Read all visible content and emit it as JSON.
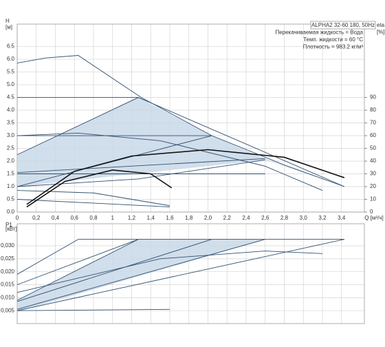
{
  "chart_data": [
    {
      "type": "line",
      "ylabel": "H",
      "yunit": "[м]",
      "xlabel": "Q [м³/ч]",
      "y2label": "eta",
      "y2unit": "[%]",
      "info": [
        "ALPHA2 32-60 180, 50Hz",
        "Перекачиваемая жидкость = Вода",
        "Темп. жидкости = 60 °C",
        "Плотность = 983.2 кг/м³"
      ],
      "xlim": [
        0,
        3.64
      ],
      "ylim": [
        0,
        7.38
      ],
      "y2lim": [
        0,
        147.6
      ],
      "grid": true,
      "xticks": [
        0,
        {
          "value": 0.2,
          "label": "0,2"
        },
        {
          "value": 0.4,
          "label": "0,4"
        },
        {
          "value": 0.6,
          "label": "0,6"
        },
        {
          "value": 0.8,
          "label": "0,8"
        },
        1,
        {
          "value": 1.2,
          "label": "1,2"
        },
        {
          "value": 1.4,
          "label": "1,4"
        },
        {
          "value": 1.6,
          "label": "1,6"
        },
        {
          "value": 1.8,
          "label": "1,8"
        },
        {
          "value": 2,
          "label": "2,0"
        },
        {
          "value": 2.2,
          "label": "2,2"
        },
        {
          "value": 2.4,
          "label": "2,4"
        },
        {
          "value": 2.6,
          "label": "2,6"
        },
        {
          "value": 2.8,
          "label": "2,8"
        },
        {
          "value": 3,
          "label": "3,0"
        },
        {
          "value": 3.2,
          "label": "3,2"
        },
        {
          "value": 3.4,
          "label": "3,4"
        }
      ],
      "yticks": [
        {
          "value": 0,
          "label": "0.0"
        },
        0.5,
        {
          "value": 1,
          "label": "1.0"
        },
        1.5,
        {
          "value": 2,
          "label": "2.0"
        },
        2.5,
        {
          "value": 3,
          "label": "3.0"
        },
        3.5,
        {
          "value": 4,
          "label": "4.0"
        },
        4.5,
        {
          "value": 5,
          "label": "5.0"
        },
        5.5,
        {
          "value": 6,
          "label": "6.0"
        },
        6.5
      ],
      "y2ticks": [
        0,
        10,
        20,
        30,
        40,
        50,
        60,
        70,
        80,
        90
      ],
      "series": [
        {
          "color": "#c9d8e8",
          "area": true,
          "x": [
            0,
            1.27,
            2.04,
            2.6,
            3.43,
            2.6,
            0
          ],
          "values": [
            2.25,
            4.5,
            3.0,
            2.1,
            1.0,
            2.05,
            1.0
          ]
        },
        {
          "color": "#2f4f6f",
          "x": [
            0,
            0.3,
            0.64,
            1.3,
            2.04,
            2.8,
            3.43
          ],
          "values": [
            5.85,
            6.05,
            6.15,
            4.5,
            3.0,
            1.85,
            1.0
          ]
        },
        {
          "color": "#2f4f6f",
          "x": [
            0,
            1.27,
            3.43
          ],
          "values": [
            2.25,
            4.5,
            1.0
          ]
        },
        {
          "color": "#2f4f6f",
          "x": [
            0,
            1.27
          ],
          "values": [
            4.5,
            4.5
          ]
        },
        {
          "color": "#2f4f6f",
          "x": [
            0,
            2.04
          ],
          "values": [
            3.0,
            3.0
          ]
        },
        {
          "color": "#2f4f6f",
          "x": [
            0,
            2.6
          ],
          "values": [
            1.5,
            1.5
          ]
        },
        {
          "color": "#2f4f6f",
          "x": [
            0,
            2.04
          ],
          "values": [
            1.0,
            3.0
          ]
        },
        {
          "color": "#2f4f6f",
          "x": [
            0,
            2.6
          ],
          "values": [
            1.55,
            2.1
          ]
        },
        {
          "color": "#2f4f6f",
          "x": [
            0,
            0.64,
            1.5,
            2.6,
            3.2
          ],
          "values": [
            3.0,
            3.1,
            2.8,
            1.8,
            0.85
          ]
        },
        {
          "color": "#2f4f6f",
          "x": [
            0,
            1.27,
            2.6
          ],
          "values": [
            1.0,
            1.3,
            2.05
          ]
        },
        {
          "color": "#2f4f6f",
          "x": [
            0,
            0.8,
            1.6
          ],
          "values": [
            0.85,
            0.75,
            0.25
          ]
        },
        {
          "color": "#2f4f6f",
          "x": [
            0,
            1.6
          ],
          "values": [
            0.5,
            0.2
          ]
        },
        {
          "color": "#111111",
          "axis": "y2",
          "x": [
            0.1,
            0.6,
            1.2,
            2.0,
            2.8,
            3.43
          ],
          "values": [
            6,
            32,
            44,
            49,
            43,
            27
          ]
        },
        {
          "color": "#111111",
          "axis": "y2",
          "x": [
            0.1,
            0.5,
            1.0,
            1.4,
            1.62
          ],
          "values": [
            4,
            24,
            33,
            30,
            19
          ]
        }
      ]
    },
    {
      "type": "line",
      "ylabel": "P1",
      "yunit": "[кВт]",
      "xlim": [
        0,
        3.64
      ],
      "ylim": [
        0,
        0.0385
      ],
      "grid": true,
      "xticks": [
        0,
        0.2,
        0.4,
        0.6,
        0.8,
        1,
        1.2,
        1.4,
        1.6,
        1.8,
        2,
        2.2,
        2.4,
        2.6,
        2.8,
        3,
        3.2,
        3.4
      ],
      "yticks": [
        {
          "value": 0.005,
          "label": "0,005"
        },
        {
          "value": 0.01,
          "label": "0,010"
        },
        {
          "value": 0.015,
          "label": "0,015"
        },
        {
          "value": 0.02,
          "label": "0,020"
        },
        {
          "value": 0.025,
          "label": "0,025"
        },
        {
          "value": 0.03,
          "label": "0,030"
        }
      ],
      "series": [
        {
          "color": "#c9d8e8",
          "area": true,
          "x": [
            0,
            1.27,
            2.6,
            0
          ],
          "values": [
            0.009,
            0.0325,
            0.0325,
            0.0045
          ]
        },
        {
          "color": "#2f4f6f",
          "x": [
            0.64,
            3.43
          ],
          "values": [
            0.0325,
            0.0325
          ]
        },
        {
          "color": "#2f4f6f",
          "x": [
            0,
            0.64
          ],
          "values": [
            0.019,
            0.0325
          ]
        },
        {
          "color": "#2f4f6f",
          "x": [
            0,
            1.27
          ],
          "values": [
            0.015,
            0.0325
          ]
        },
        {
          "color": "#2f4f6f",
          "x": [
            0,
            1.27
          ],
          "values": [
            0.009,
            0.0325
          ]
        },
        {
          "color": "#2f4f6f",
          "x": [
            0,
            2.04
          ],
          "values": [
            0.0085,
            0.0325
          ]
        },
        {
          "color": "#2f4f6f",
          "x": [
            0,
            2.6
          ],
          "values": [
            0.0055,
            0.0325
          ]
        },
        {
          "color": "#2f4f6f",
          "x": [
            0,
            3.43
          ],
          "values": [
            0.005,
            0.0325
          ]
        },
        {
          "color": "#2f4f6f",
          "x": [
            0,
            1.5,
            2.6,
            3.2
          ],
          "values": [
            0.012,
            0.025,
            0.028,
            0.027
          ]
        },
        {
          "color": "#2f4f6f",
          "x": [
            0,
            1.6
          ],
          "values": [
            0.005,
            0.0055
          ]
        }
      ]
    }
  ]
}
